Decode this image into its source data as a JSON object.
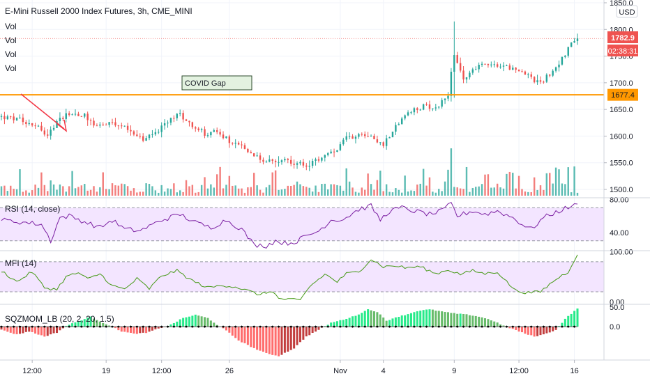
{
  "header": {
    "title": "E-Mini Russell 2000 Index Futures, 3h, CME_MINI",
    "vol_labels": [
      "Vol",
      "Vol",
      "Vol",
      "Vol"
    ],
    "currency": "USD"
  },
  "price_labels": {
    "last": "1782.9",
    "countdown": "02:38:31",
    "hline": "1677.4"
  },
  "annotation": {
    "text": "COVID Gap"
  },
  "colors": {
    "up": "#26a69a",
    "down": "#ef5350",
    "hline": "#ff9800",
    "arrow": "#f23645",
    "rsi": "#7b1fa2",
    "mfi": "#459915",
    "band": "#f3e5ff",
    "sqz_up_strong": "#00e676",
    "sqz_up_weak": "#4caf50",
    "sqz_down_strong": "#ff5252",
    "sqz_down_weak": "#b71c1c"
  },
  "chart_data": [
    {
      "type": "candlestick",
      "title": "E-Mini Russell 2000 Index Futures, 3h, CME_MINI",
      "x_tick_labels": [
        "12:00",
        "19",
        "12:00",
        "26",
        "Nov",
        "4",
        "9",
        "12:00",
        "16"
      ],
      "y_ticks": [
        "1850.0",
        "1800.0",
        "1750.0",
        "1700.0",
        "1650.0",
        "1600.0",
        "1550.0",
        "1500.0"
      ],
      "ylim": [
        1490,
        1852
      ],
      "hline": 1677.4,
      "last_price": 1782.9,
      "path_keypoints": [
        [
          0,
          1636
        ],
        [
          6,
          1630
        ],
        [
          11,
          1622
        ],
        [
          15,
          1603
        ],
        [
          18,
          1625
        ],
        [
          21,
          1643
        ],
        [
          27,
          1640
        ],
        [
          30,
          1622
        ],
        [
          36,
          1622
        ],
        [
          42,
          1612
        ],
        [
          46,
          1592
        ],
        [
          52,
          1615
        ],
        [
          56,
          1638
        ],
        [
          58,
          1640
        ],
        [
          63,
          1617
        ],
        [
          66,
          1605
        ],
        [
          70,
          1608
        ],
        [
          74,
          1592
        ],
        [
          79,
          1575
        ],
        [
          84,
          1556
        ],
        [
          88,
          1552
        ],
        [
          92,
          1560
        ],
        [
          95,
          1548
        ],
        [
          100,
          1545
        ],
        [
          104,
          1560
        ],
        [
          108,
          1570
        ],
        [
          112,
          1595
        ],
        [
          116,
          1605
        ],
        [
          120,
          1600
        ],
        [
          124,
          1585
        ],
        [
          128,
          1620
        ],
        [
          133,
          1645
        ],
        [
          138,
          1658
        ],
        [
          141,
          1652
        ],
        [
          143,
          1665
        ],
        [
          145,
          1680
        ],
        [
          147,
          1752
        ],
        [
          150,
          1705
        ],
        [
          154,
          1730
        ],
        [
          158,
          1738
        ],
        [
          163,
          1732
        ],
        [
          166,
          1725
        ],
        [
          170,
          1715
        ],
        [
          174,
          1700
        ],
        [
          176,
          1705
        ],
        [
          180,
          1730
        ],
        [
          183,
          1755
        ],
        [
          186,
          1782
        ]
      ],
      "vol_max": 1
    },
    {
      "type": "line",
      "title": "RSI (14, close)",
      "y_ticks": [
        "80.00",
        "40.00"
      ],
      "ylim": [
        18,
        82
      ],
      "bands": [
        30,
        70
      ],
      "keypoints": [
        [
          0,
          55
        ],
        [
          8,
          52
        ],
        [
          13,
          50
        ],
        [
          16,
          30
        ],
        [
          19,
          58
        ],
        [
          22,
          60
        ],
        [
          27,
          53
        ],
        [
          32,
          46
        ],
        [
          36,
          55
        ],
        [
          40,
          44
        ],
        [
          45,
          42
        ],
        [
          52,
          55
        ],
        [
          58,
          62
        ],
        [
          63,
          52
        ],
        [
          68,
          46
        ],
        [
          73,
          55
        ],
        [
          78,
          44
        ],
        [
          82,
          25
        ],
        [
          86,
          24
        ],
        [
          89,
          30
        ],
        [
          92,
          27
        ],
        [
          95,
          28
        ],
        [
          98,
          34
        ],
        [
          103,
          42
        ],
        [
          107,
          55
        ],
        [
          111,
          56
        ],
        [
          116,
          68
        ],
        [
          120,
          72
        ],
        [
          123,
          55
        ],
        [
          126,
          66
        ],
        [
          130,
          70
        ],
        [
          134,
          66
        ],
        [
          139,
          62
        ],
        [
          143,
          66
        ],
        [
          146,
          75
        ],
        [
          148,
          60
        ],
        [
          153,
          66
        ],
        [
          157,
          62
        ],
        [
          161,
          66
        ],
        [
          166,
          58
        ],
        [
          169,
          50
        ],
        [
          172,
          44
        ],
        [
          176,
          58
        ],
        [
          181,
          66
        ],
        [
          185,
          72
        ],
        [
          187,
          73
        ]
      ]
    },
    {
      "type": "line",
      "title": "MFI (14)",
      "y_ticks": [
        "100.00",
        "0.00"
      ],
      "ylim": [
        -5,
        102
      ],
      "bands": [
        20,
        80
      ],
      "keypoints": [
        [
          0,
          62
        ],
        [
          5,
          40
        ],
        [
          10,
          60
        ],
        [
          14,
          28
        ],
        [
          18,
          25
        ],
        [
          21,
          50
        ],
        [
          25,
          58
        ],
        [
          28,
          45
        ],
        [
          32,
          56
        ],
        [
          36,
          32
        ],
        [
          40,
          25
        ],
        [
          44,
          46
        ],
        [
          48,
          26
        ],
        [
          52,
          52
        ],
        [
          57,
          62
        ],
        [
          62,
          42
        ],
        [
          67,
          28
        ],
        [
          72,
          33
        ],
        [
          76,
          30
        ],
        [
          80,
          22
        ],
        [
          84,
          14
        ],
        [
          88,
          22
        ],
        [
          90,
          6
        ],
        [
          94,
          4
        ],
        [
          97,
          3
        ],
        [
          100,
          30
        ],
        [
          105,
          55
        ],
        [
          109,
          40
        ],
        [
          112,
          56
        ],
        [
          116,
          60
        ],
        [
          120,
          85
        ],
        [
          124,
          70
        ],
        [
          128,
          72
        ],
        [
          131,
          68
        ],
        [
          136,
          70
        ],
        [
          141,
          56
        ],
        [
          145,
          64
        ],
        [
          149,
          55
        ],
        [
          153,
          62
        ],
        [
          157,
          56
        ],
        [
          161,
          60
        ],
        [
          164,
          40
        ],
        [
          167,
          22
        ],
        [
          171,
          18
        ],
        [
          175,
          20
        ],
        [
          180,
          45
        ],
        [
          184,
          60
        ],
        [
          187,
          96
        ]
      ]
    },
    {
      "type": "bar",
      "title": "SQZMOM_LB (20, 2, 20, 1.5)",
      "y_ticks": [
        "50.0",
        "0.0"
      ],
      "ylim": [
        -85,
        57
      ],
      "keypoints": [
        [
          0,
          -8
        ],
        [
          5,
          -20
        ],
        [
          9,
          -12
        ],
        [
          14,
          -25
        ],
        [
          18,
          -15
        ],
        [
          21,
          2
        ],
        [
          25,
          14
        ],
        [
          29,
          25
        ],
        [
          33,
          10
        ],
        [
          36,
          0
        ],
        [
          39,
          -12
        ],
        [
          43,
          -18
        ],
        [
          47,
          -16
        ],
        [
          51,
          -5
        ],
        [
          55,
          5
        ],
        [
          59,
          22
        ],
        [
          63,
          30
        ],
        [
          67,
          22
        ],
        [
          70,
          5
        ],
        [
          73,
          -10
        ],
        [
          77,
          -35
        ],
        [
          82,
          -55
        ],
        [
          86,
          -68
        ],
        [
          90,
          -75
        ],
        [
          95,
          -55
        ],
        [
          99,
          -25
        ],
        [
          103,
          -8
        ],
        [
          107,
          10
        ],
        [
          111,
          18
        ],
        [
          115,
          28
        ],
        [
          119,
          44
        ],
        [
          122,
          38
        ],
        [
          125,
          15
        ],
        [
          128,
          24
        ],
        [
          132,
          32
        ],
        [
          135,
          40
        ],
        [
          139,
          44
        ],
        [
          142,
          40
        ],
        [
          145,
          36
        ],
        [
          148,
          33
        ],
        [
          152,
          30
        ],
        [
          156,
          24
        ],
        [
          160,
          14
        ],
        [
          163,
          2
        ],
        [
          166,
          -6
        ],
        [
          170,
          -18
        ],
        [
          173,
          -25
        ],
        [
          176,
          -20
        ],
        [
          180,
          -8
        ],
        [
          183,
          20
        ],
        [
          187,
          46
        ]
      ]
    }
  ]
}
